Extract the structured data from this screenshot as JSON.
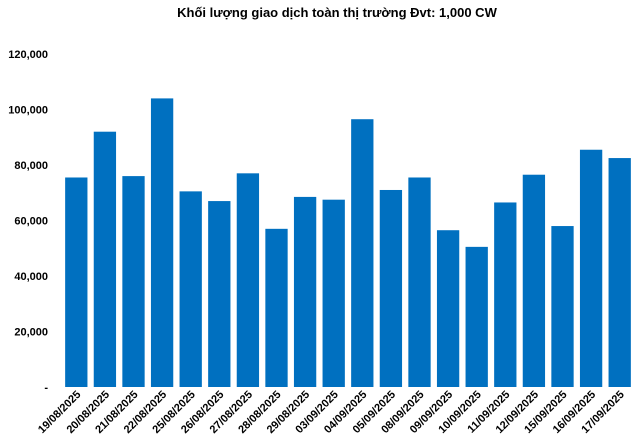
{
  "chart_data": {
    "type": "bar",
    "title": "Khối lượng giao dịch toàn thị trường Đvt: 1,000 CW",
    "xlabel": "",
    "ylabel": "",
    "categories": [
      "19/08/2025",
      "20/08/2025",
      "21/08/2025",
      "22/08/2025",
      "25/08/2025",
      "26/08/2025",
      "27/08/2025",
      "28/08/2025",
      "29/08/2025",
      "03/09/2025",
      "04/09/2025",
      "05/09/2025",
      "08/09/2025",
      "09/09/2025",
      "10/09/2025",
      "11/09/2025",
      "12/09/2025",
      "15/09/2025",
      "16/09/2025",
      "17/09/2025"
    ],
    "values": [
      75500,
      92000,
      76000,
      104000,
      70500,
      67000,
      77000,
      57000,
      68500,
      67500,
      96500,
      71000,
      75500,
      56500,
      50500,
      66500,
      76500,
      58000,
      85500,
      82500
    ],
    "ylim": [
      0,
      120000
    ],
    "yticks": [
      "-",
      "20,000",
      "40,000",
      "60,000",
      "80,000",
      "100,000",
      "120,000"
    ],
    "grid": false,
    "color": "#0070C0"
  }
}
